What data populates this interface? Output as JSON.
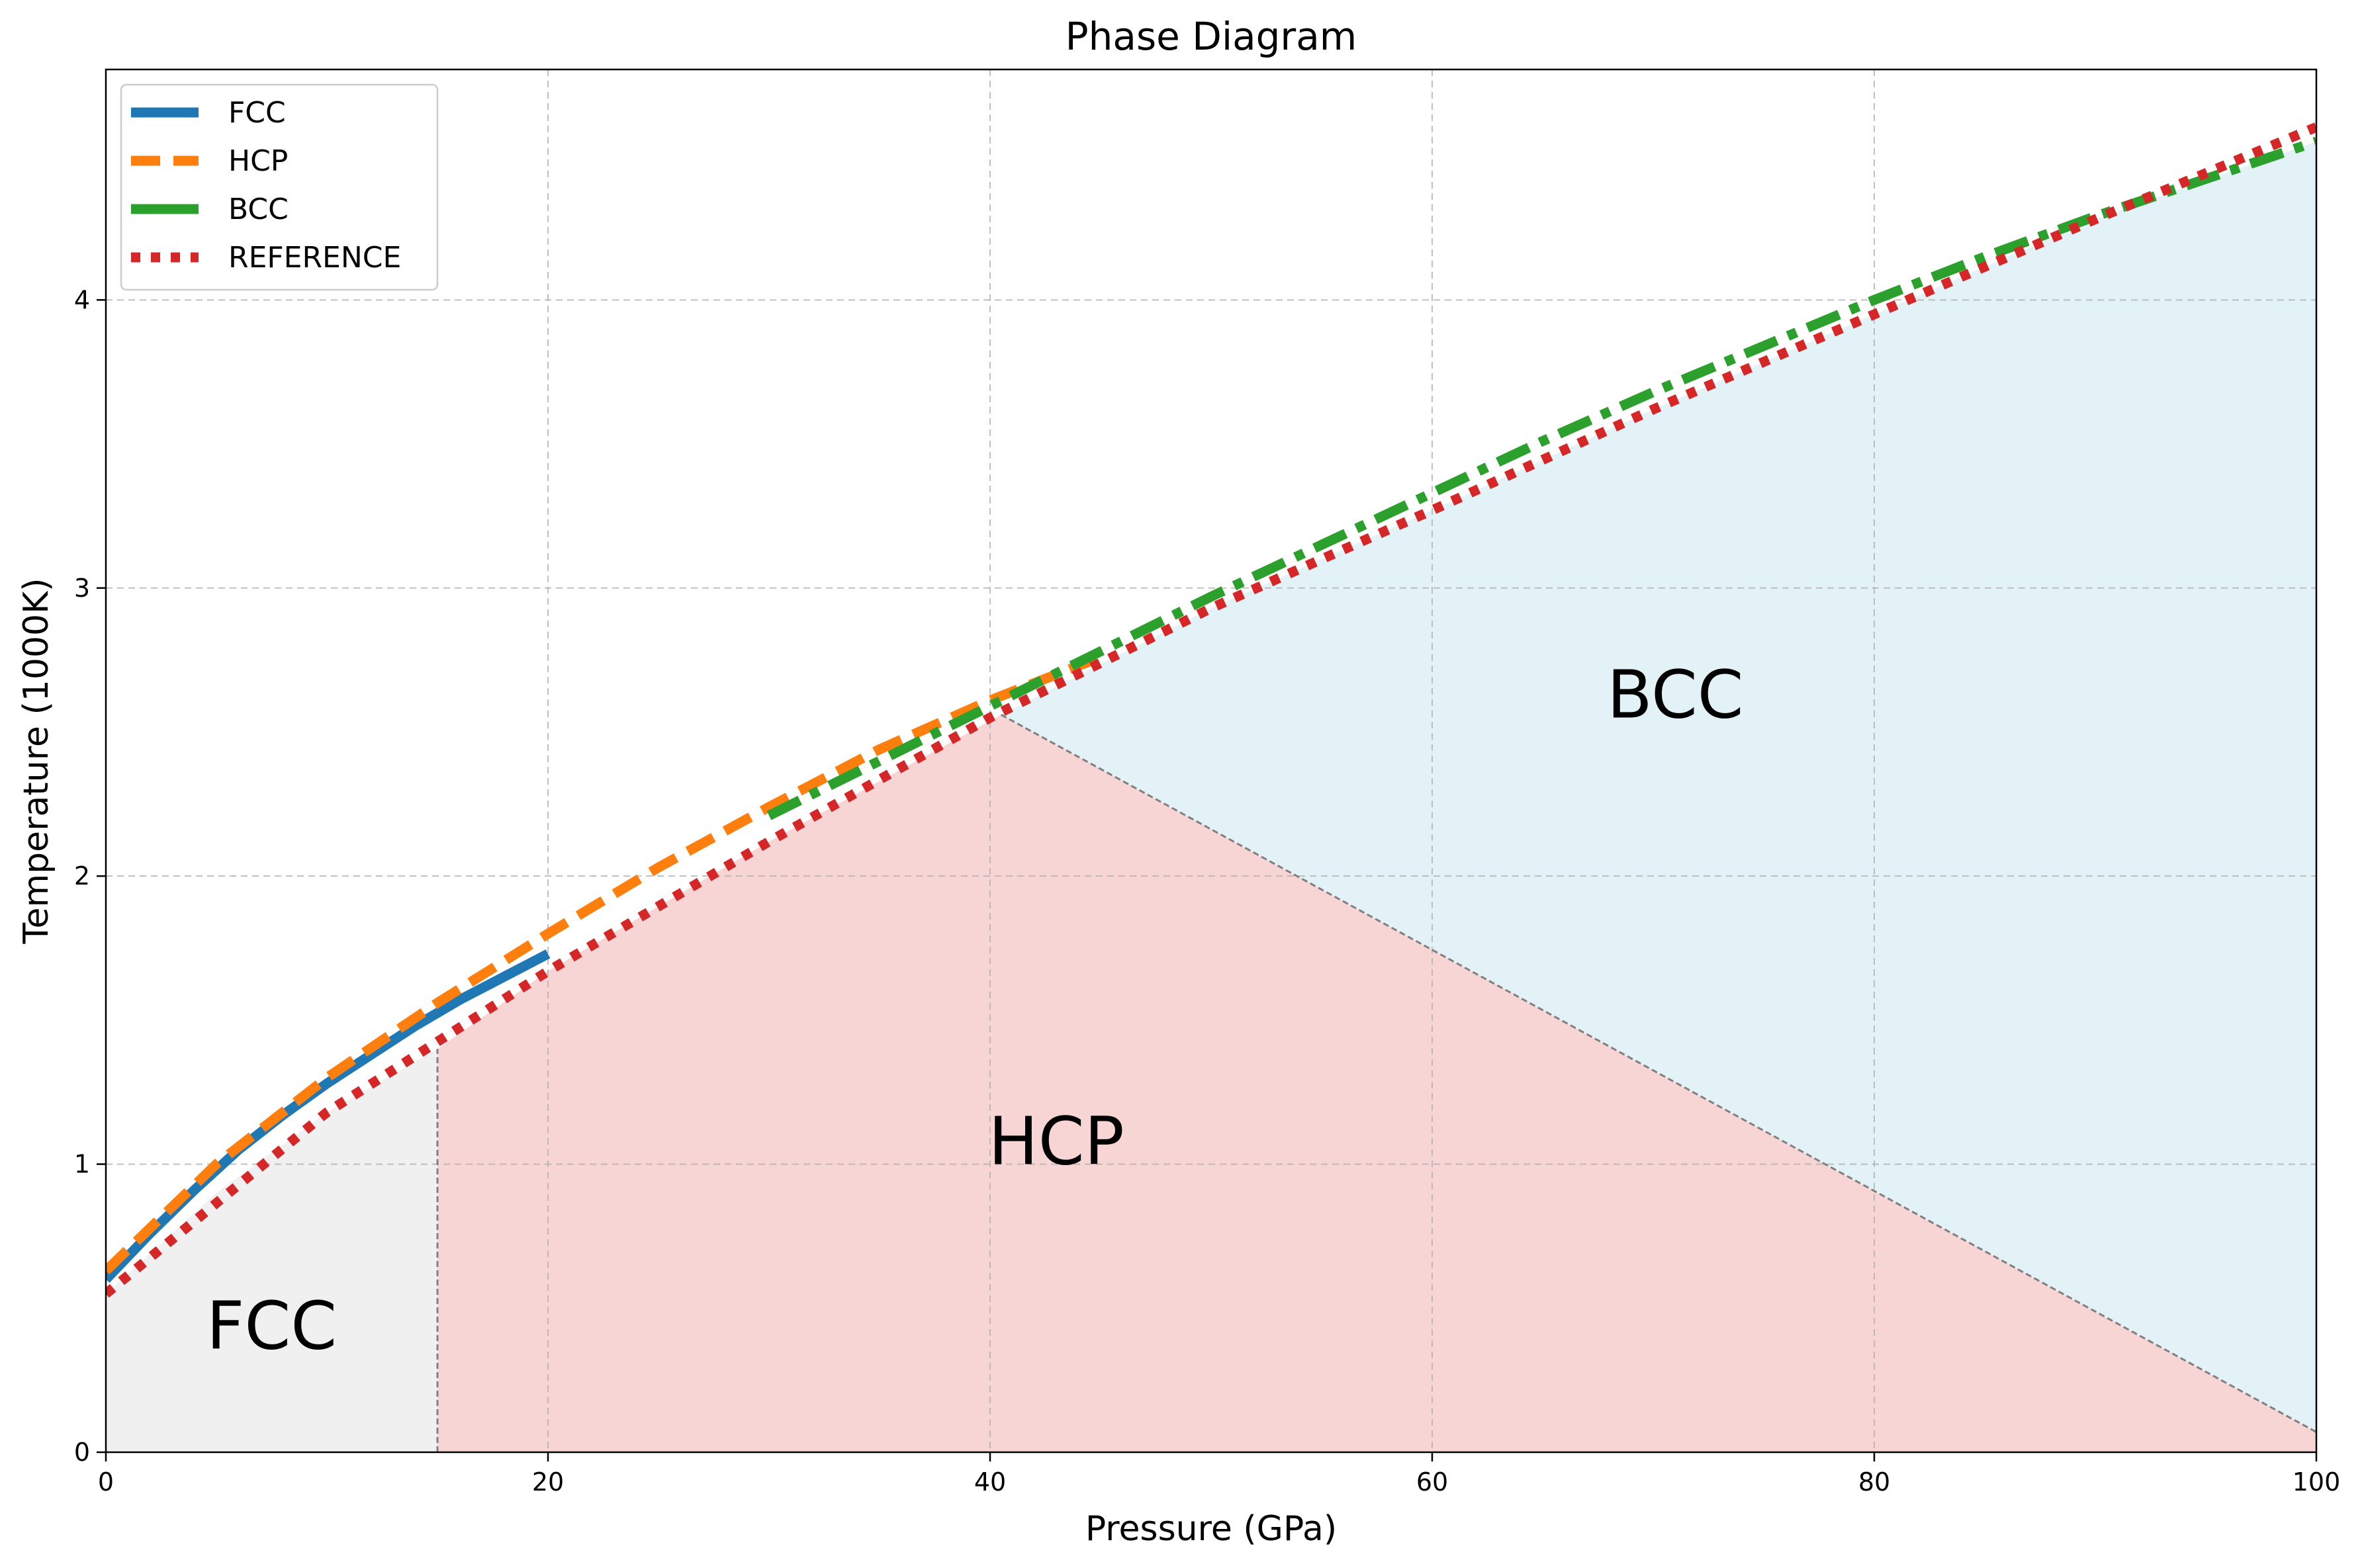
{
  "chart_data": {
    "type": "line",
    "title": "Phase Diagram",
    "xlabel": "Pressure (GPa)",
    "ylabel": "Temperature (1000K)",
    "xlim": [
      0,
      100
    ],
    "ylim": [
      0,
      4.8
    ],
    "xticks": [
      0,
      20,
      40,
      60,
      80,
      100
    ],
    "yticks": [
      0,
      1,
      2,
      3,
      4
    ],
    "grid": true,
    "legend_position": "top-left",
    "series": [
      {
        "name": "FCC",
        "color": "#1f77b4",
        "style": "solid",
        "x": [
          0,
          2,
          4,
          6,
          8,
          10,
          12,
          14,
          16,
          18,
          20
        ],
        "y": [
          0.6,
          0.76,
          0.91,
          1.05,
          1.17,
          1.28,
          1.38,
          1.48,
          1.57,
          1.65,
          1.73
        ]
      },
      {
        "name": "HCP",
        "color": "#ff7f0e",
        "style": "dashed",
        "x": [
          0,
          5,
          10,
          15,
          20,
          25,
          30,
          35,
          40,
          45
        ],
        "y": [
          0.63,
          1.0,
          1.3,
          1.56,
          1.8,
          2.03,
          2.24,
          2.44,
          2.61,
          2.76
        ]
      },
      {
        "name": "BCC",
        "color": "#2ca02c",
        "style": "dashdot",
        "x": [
          30,
          35,
          40,
          45,
          50,
          55,
          60,
          65,
          70,
          75,
          80,
          85,
          90,
          95,
          100
        ],
        "y": [
          2.21,
          2.4,
          2.59,
          2.78,
          2.97,
          3.15,
          3.33,
          3.51,
          3.68,
          3.84,
          4.0,
          4.15,
          4.29,
          4.42,
          4.55
        ]
      },
      {
        "name": "REFERENCE",
        "color": "#d62728",
        "style": "dotted",
        "x": [
          0,
          10,
          20,
          30,
          40,
          50,
          60,
          70,
          80,
          90,
          100
        ],
        "y": [
          0.55,
          1.18,
          1.67,
          2.12,
          2.55,
          2.93,
          3.27,
          3.62,
          3.95,
          4.28,
          4.6
        ]
      }
    ],
    "regions": [
      {
        "name": "FCC",
        "label": "FCC",
        "color": "#f0f0f0",
        "label_at": [
          7.5,
          0.36
        ],
        "polygon": [
          [
            0,
            0
          ],
          [
            15,
            0
          ],
          [
            15,
            1.4
          ],
          [
            10,
            1.18
          ],
          [
            5,
            0.9
          ],
          [
            0,
            0.55
          ]
        ]
      },
      {
        "name": "HCP",
        "label": "HCP",
        "color": "#f8d5d5",
        "label_at": [
          43,
          1.0
        ],
        "polygon": [
          [
            15,
            0
          ],
          [
            100,
            0
          ],
          [
            100,
            0.07
          ],
          [
            40.5,
            2.56
          ],
          [
            30,
            2.12
          ],
          [
            20,
            1.67
          ],
          [
            15,
            1.4
          ]
        ]
      },
      {
        "name": "BCC",
        "label": "BCC",
        "color": "#e3f2f7",
        "label_at": [
          71,
          2.55
        ],
        "polygon": [
          [
            40.5,
            2.56
          ],
          [
            100,
            0.07
          ],
          [
            100,
            4.55
          ],
          [
            90,
            4.28
          ],
          [
            80,
            3.95
          ],
          [
            70,
            3.62
          ],
          [
            60,
            3.27
          ],
          [
            50,
            2.93
          ]
        ]
      }
    ],
    "boundaries": [
      {
        "x": [
          15,
          15
        ],
        "y": [
          0,
          1.4
        ]
      },
      {
        "x": [
          40.5,
          100
        ],
        "y": [
          2.56,
          0.07
        ]
      }
    ]
  }
}
